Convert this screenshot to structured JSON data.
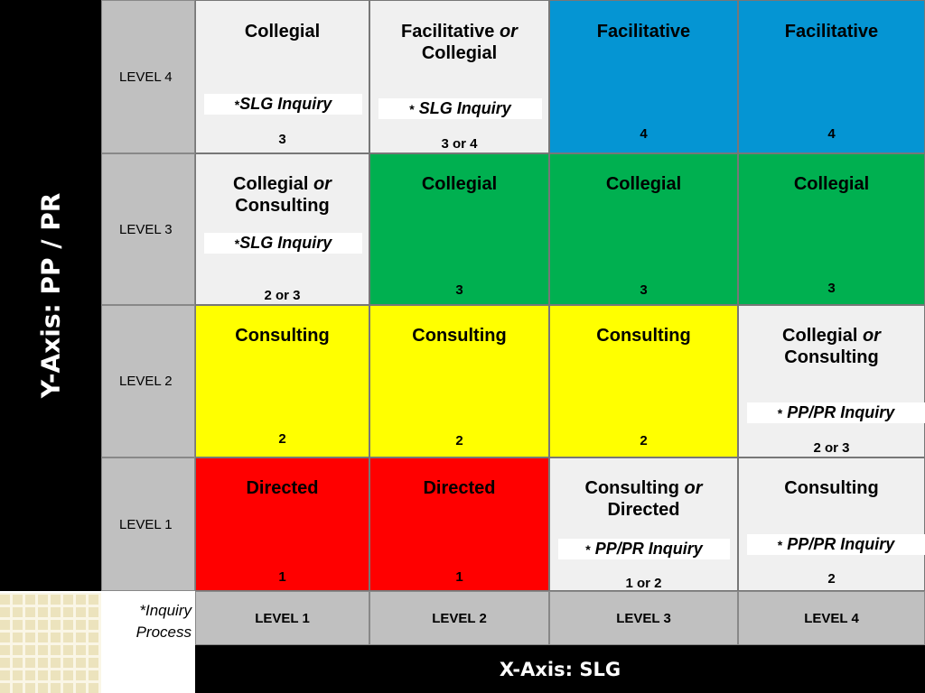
{
  "y_axis_label": "Y-Axis: PP / PR",
  "x_axis_label": "X-Axis: SLG",
  "inquiry_note": "*Inquiry Process",
  "row_labels": [
    "LEVEL 4",
    "LEVEL 3",
    "LEVEL 2",
    "LEVEL 1"
  ],
  "col_labels": [
    "LEVEL 1",
    "LEVEL 2",
    "LEVEL 3",
    "LEVEL 4"
  ],
  "colors": {
    "gray_cell": "#f0f0f0",
    "blue": "#0595d3",
    "green": "#00b050",
    "yellow": "#ffff00",
    "red": "#ff0000"
  },
  "cells": [
    [
      {
        "bg": "#f0f0f0",
        "title_a": "Collegial",
        "title_em": "",
        "title_b": "",
        "tag_star": "*",
        "tag_text": "SLG  Inquiry",
        "value": "3"
      },
      {
        "bg": "#f0f0f0",
        "title_a": "Facilitative",
        "title_em": "or",
        "title_b": "Collegial",
        "tag_star": "*",
        "tag_text": " SLG Inquiry",
        "value": "3 or 4"
      },
      {
        "bg": "#0595d3",
        "title_a": "Facilitative",
        "title_em": "",
        "title_b": "",
        "tag_star": "",
        "tag_text": "",
        "value": "4"
      },
      {
        "bg": "#0595d3",
        "title_a": "Facilitative",
        "title_em": "",
        "title_b": "",
        "tag_star": "",
        "tag_text": "",
        "value": "4"
      }
    ],
    [
      {
        "bg": "#f0f0f0",
        "title_a": "Collegial",
        "title_em": "or",
        "title_b": "Consulting",
        "tag_star": "*",
        "tag_text": "SLG Inquiry",
        "value": "2 or 3"
      },
      {
        "bg": "#00b050",
        "title_a": "Collegial",
        "title_em": "",
        "title_b": "",
        "tag_star": "",
        "tag_text": "",
        "value": "3"
      },
      {
        "bg": "#00b050",
        "title_a": "Collegial",
        "title_em": "",
        "title_b": "",
        "tag_star": "",
        "tag_text": "",
        "value": "3"
      },
      {
        "bg": "#00b050",
        "title_a": "Collegial",
        "title_em": "",
        "title_b": "",
        "tag_star": "",
        "tag_text": "",
        "value": "3"
      }
    ],
    [
      {
        "bg": "#ffff00",
        "title_a": "Consulting",
        "title_em": "",
        "title_b": "",
        "tag_star": "",
        "tag_text": "",
        "value": "2"
      },
      {
        "bg": "#ffff00",
        "title_a": "Consulting",
        "title_em": "",
        "title_b": "",
        "tag_star": "",
        "tag_text": "",
        "value": "2"
      },
      {
        "bg": "#ffff00",
        "title_a": "Consulting",
        "title_em": "",
        "title_b": "",
        "tag_star": "",
        "tag_text": "",
        "value": "2"
      },
      {
        "bg": "#f0f0f0",
        "title_a": "Collegial",
        "title_em": "or",
        "title_b": "Consulting",
        "tag_star": "*",
        "tag_text": " PP/PR Inquiry",
        "value": "2 or 3"
      }
    ],
    [
      {
        "bg": "#ff0000",
        "title_a": "Directed",
        "title_em": "",
        "title_b": "",
        "tag_star": "",
        "tag_text": "",
        "value": "1"
      },
      {
        "bg": "#ff0000",
        "title_a": "Directed",
        "title_em": "",
        "title_b": "",
        "tag_star": "",
        "tag_text": "",
        "value": "1"
      },
      {
        "bg": "#f0f0f0",
        "title_a": "Consulting",
        "title_em": "or",
        "title_b": "Directed",
        "tag_star": "*",
        "tag_text": " PP/PR Inquiry",
        "value": "1 or 2"
      },
      {
        "bg": "#f0f0f0",
        "title_a": "Consulting",
        "title_em": "",
        "title_b": "",
        "tag_star": "*",
        "tag_text": " PP/PR Inquiry",
        "value": "2"
      }
    ]
  ]
}
